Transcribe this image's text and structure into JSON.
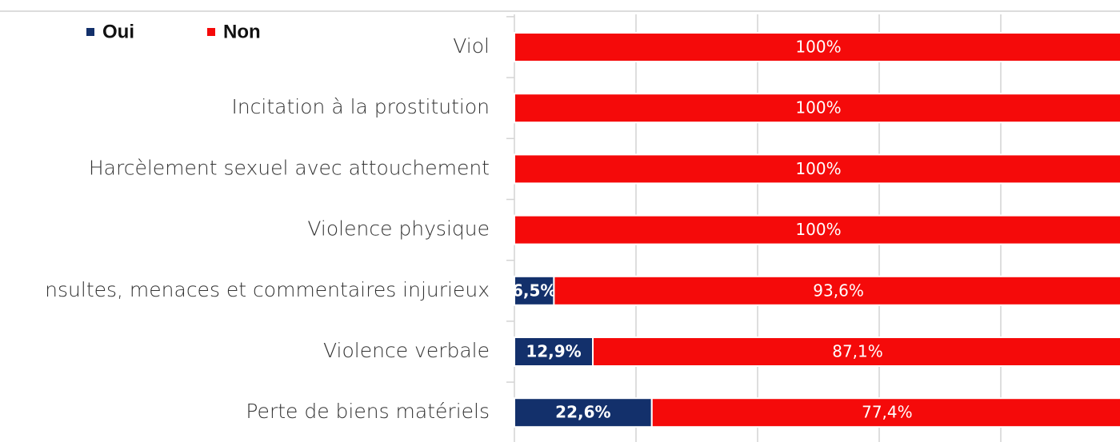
{
  "chart_data": {
    "type": "stacked-barh",
    "categories": [
      "Viol",
      "Incitation à la prostitution",
      "Harcèlement sexuel avec attouchement",
      "Violence physique",
      "nsultes, menaces et commentaires injurieux",
      "Violence verbale",
      "Perte de biens matériels"
    ],
    "series": [
      {
        "name": "Oui",
        "color": "#13306b",
        "values": [
          0,
          0,
          0,
          0,
          6.5,
          12.9,
          22.6
        ],
        "value_labels": [
          null,
          null,
          null,
          null,
          "6,5%",
          "12,9%",
          "22,6%"
        ]
      },
      {
        "name": "Non",
        "color": "#f50a0a",
        "values": [
          100,
          100,
          100,
          100,
          93.6,
          87.1,
          77.4
        ],
        "value_labels": [
          "100%",
          "100%",
          "100%",
          "100%",
          "93,6%",
          "87,1%",
          "77,4%"
        ]
      }
    ],
    "xlim": [
      0,
      100
    ],
    "xticks": [
      0,
      20,
      40,
      60,
      80,
      100
    ],
    "grid": true,
    "legend": "top-left"
  }
}
